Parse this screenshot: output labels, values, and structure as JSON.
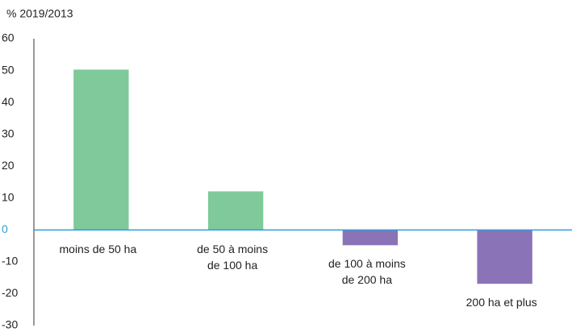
{
  "chart_data": {
    "type": "bar",
    "y_axis_label": "% 2019/2013",
    "categories": [
      [
        "moins de 50 ha"
      ],
      [
        "de 50 à moins",
        "de 100 ha"
      ],
      [
        "de 100 à moins",
        "de 200 ha"
      ],
      [
        "200 ha et plus"
      ]
    ],
    "values": [
      50.3,
      12.1,
      -4.8,
      -16.9
    ],
    "colors": [
      "#7fc99b",
      "#7fc99b",
      "#8b73b8",
      "#8b73b8"
    ],
    "zero_line_color": "#2a9fd8",
    "ylim": [
      -30,
      60
    ],
    "yticks": [
      -30,
      -20,
      -10,
      0,
      10,
      20,
      30,
      40,
      50,
      60
    ],
    "grid": false
  }
}
